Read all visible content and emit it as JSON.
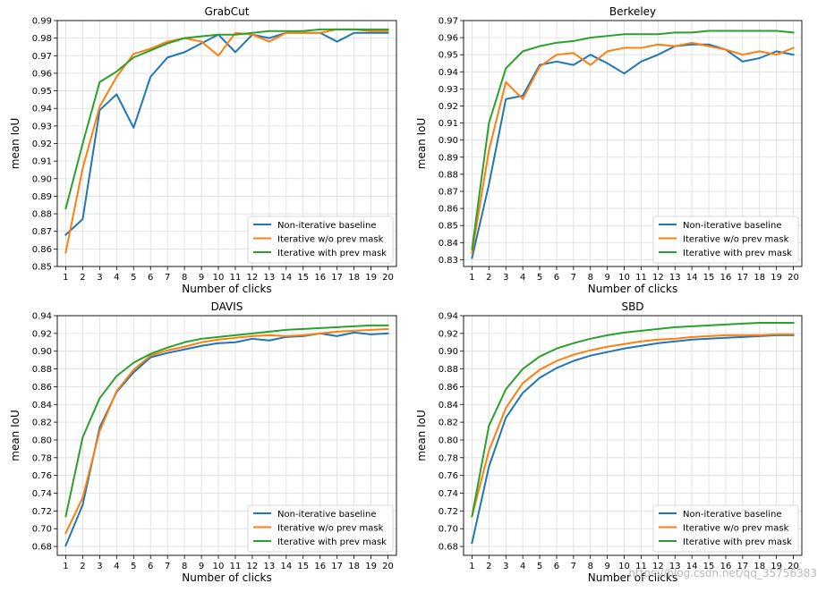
{
  "colors": {
    "Non-iterative baseline": "#1f77b4",
    "Iterative w/o prev mask": "#ff7f0e",
    "Iterative with prev mask": "#2ca02c",
    "grid": "#dcdcdc",
    "axes": "#000000"
  },
  "watermark": "https://blog.csdn.net/qq_35756383",
  "chart_data": [
    {
      "type": "line",
      "title": "GrabCut",
      "xlabel": "Number of clicks",
      "ylabel": "mean IoU",
      "x": [
        1,
        2,
        3,
        4,
        5,
        6,
        7,
        8,
        9,
        10,
        11,
        12,
        13,
        14,
        15,
        16,
        17,
        18,
        19,
        20
      ],
      "ylim": [
        0.85,
        0.99
      ],
      "yticks": [
        0.85,
        0.86,
        0.87,
        0.88,
        0.89,
        0.9,
        0.91,
        0.92,
        0.93,
        0.94,
        0.95,
        0.96,
        0.97,
        0.98,
        0.99
      ],
      "ytick_labels": [
        "0.85",
        "0.86",
        "0.87",
        "0.88",
        "0.89",
        "0.90",
        "0.91",
        "0.92",
        "0.93",
        "0.94",
        "0.95",
        "0.96",
        "0.97",
        "0.98",
        "0.99"
      ],
      "grid": true,
      "legend": "bottom-right",
      "series": [
        {
          "name": "Non-iterative baseline",
          "values": [
            0.868,
            0.877,
            0.939,
            0.948,
            0.929,
            0.958,
            0.969,
            0.972,
            0.977,
            0.982,
            0.972,
            0.982,
            0.98,
            0.983,
            0.983,
            0.983,
            0.978,
            0.983,
            0.983,
            0.983
          ]
        },
        {
          "name": "Iterative w/o prev mask",
          "values": [
            0.858,
            0.906,
            0.941,
            0.958,
            0.971,
            0.974,
            0.978,
            0.98,
            0.978,
            0.97,
            0.983,
            0.982,
            0.978,
            0.983,
            0.983,
            0.983,
            0.985,
            0.985,
            0.984,
            0.984
          ]
        },
        {
          "name": "Iterative with prev mask",
          "values": [
            0.883,
            0.92,
            0.955,
            0.961,
            0.969,
            0.973,
            0.977,
            0.98,
            0.981,
            0.982,
            0.982,
            0.983,
            0.984,
            0.984,
            0.984,
            0.985,
            0.985,
            0.985,
            0.985,
            0.985
          ]
        }
      ]
    },
    {
      "type": "line",
      "title": "Berkeley",
      "xlabel": "Number of clicks",
      "ylabel": "mean IoU",
      "x": [
        1,
        2,
        3,
        4,
        5,
        6,
        7,
        8,
        9,
        10,
        11,
        12,
        13,
        14,
        15,
        16,
        17,
        18,
        19,
        20
      ],
      "ylim": [
        0.826,
        0.97
      ],
      "yticks": [
        0.83,
        0.84,
        0.85,
        0.86,
        0.87,
        0.88,
        0.89,
        0.9,
        0.91,
        0.92,
        0.93,
        0.94,
        0.95,
        0.96,
        0.97
      ],
      "ytick_labels": [
        "0.83",
        "0.84",
        "0.85",
        "0.86",
        "0.87",
        "0.88",
        "0.89",
        "0.90",
        "0.91",
        "0.92",
        "0.93",
        "0.94",
        "0.95",
        "0.96",
        "0.97"
      ],
      "grid": true,
      "legend": "bottom-right",
      "series": [
        {
          "name": "Non-iterative baseline",
          "values": [
            0.831,
            0.874,
            0.924,
            0.926,
            0.944,
            0.946,
            0.944,
            0.95,
            0.945,
            0.939,
            0.946,
            0.95,
            0.955,
            0.956,
            0.956,
            0.953,
            0.946,
            0.948,
            0.952,
            0.95
          ]
        },
        {
          "name": "Iterative w/o prev mask",
          "values": [
            0.834,
            0.894,
            0.934,
            0.924,
            0.943,
            0.95,
            0.951,
            0.944,
            0.952,
            0.954,
            0.954,
            0.956,
            0.955,
            0.957,
            0.955,
            0.953,
            0.95,
            0.952,
            0.95,
            0.954
          ]
        },
        {
          "name": "Iterative with prev mask",
          "values": [
            0.836,
            0.91,
            0.942,
            0.952,
            0.955,
            0.957,
            0.958,
            0.96,
            0.961,
            0.962,
            0.962,
            0.962,
            0.963,
            0.963,
            0.964,
            0.964,
            0.964,
            0.964,
            0.964,
            0.963
          ]
        }
      ]
    },
    {
      "type": "line",
      "title": "DAVIS",
      "xlabel": "Number of clicks",
      "ylabel": "mean IoU",
      "x": [
        1,
        2,
        3,
        4,
        5,
        6,
        7,
        8,
        9,
        10,
        11,
        12,
        13,
        14,
        15,
        16,
        17,
        18,
        19,
        20
      ],
      "ylim": [
        0.67,
        0.94
      ],
      "yticks": [
        0.68,
        0.7,
        0.72,
        0.74,
        0.76,
        0.78,
        0.8,
        0.82,
        0.84,
        0.86,
        0.88,
        0.9,
        0.92,
        0.94
      ],
      "ytick_labels": [
        "0.68",
        "0.70",
        "0.72",
        "0.74",
        "0.76",
        "0.78",
        "0.80",
        "0.82",
        "0.84",
        "0.86",
        "0.88",
        "0.90",
        "0.92",
        "0.94"
      ],
      "grid": true,
      "legend": "bottom-right",
      "series": [
        {
          "name": "Non-iterative baseline",
          "values": [
            0.681,
            0.727,
            0.814,
            0.854,
            0.876,
            0.893,
            0.898,
            0.902,
            0.906,
            0.909,
            0.91,
            0.914,
            0.912,
            0.916,
            0.917,
            0.92,
            0.917,
            0.921,
            0.919,
            0.92
          ]
        },
        {
          "name": "Iterative w/o prev mask",
          "values": [
            0.695,
            0.735,
            0.81,
            0.855,
            0.879,
            0.895,
            0.901,
            0.905,
            0.91,
            0.913,
            0.915,
            0.917,
            0.918,
            0.917,
            0.918,
            0.92,
            0.922,
            0.923,
            0.924,
            0.925
          ]
        },
        {
          "name": "Iterative with prev mask",
          "values": [
            0.714,
            0.803,
            0.847,
            0.872,
            0.887,
            0.897,
            0.904,
            0.91,
            0.914,
            0.916,
            0.918,
            0.92,
            0.922,
            0.924,
            0.925,
            0.926,
            0.927,
            0.928,
            0.929,
            0.929
          ]
        }
      ]
    },
    {
      "type": "line",
      "title": "SBD",
      "xlabel": "Number of clicks",
      "ylabel": "mean IoU",
      "x": [
        1,
        2,
        3,
        4,
        5,
        6,
        7,
        8,
        9,
        10,
        11,
        12,
        13,
        14,
        15,
        16,
        17,
        18,
        19,
        20
      ],
      "ylim": [
        0.67,
        0.94
      ],
      "yticks": [
        0.68,
        0.7,
        0.72,
        0.74,
        0.76,
        0.78,
        0.8,
        0.82,
        0.84,
        0.86,
        0.88,
        0.9,
        0.92,
        0.94
      ],
      "ytick_labels": [
        "0.68",
        "0.70",
        "0.72",
        "0.74",
        "0.76",
        "0.78",
        "0.80",
        "0.82",
        "0.84",
        "0.86",
        "0.88",
        "0.90",
        "0.92",
        "0.94"
      ],
      "grid": true,
      "legend": "bottom-right",
      "series": [
        {
          "name": "Non-iterative baseline",
          "values": [
            0.684,
            0.77,
            0.825,
            0.853,
            0.87,
            0.881,
            0.889,
            0.895,
            0.899,
            0.903,
            0.906,
            0.909,
            0.911,
            0.913,
            0.914,
            0.915,
            0.916,
            0.917,
            0.918,
            0.918
          ]
        },
        {
          "name": "Iterative w/o prev mask",
          "values": [
            0.714,
            0.788,
            0.836,
            0.864,
            0.879,
            0.889,
            0.896,
            0.901,
            0.905,
            0.908,
            0.911,
            0.913,
            0.914,
            0.916,
            0.917,
            0.918,
            0.918,
            0.918,
            0.919,
            0.919
          ]
        },
        {
          "name": "Iterative with prev mask",
          "values": [
            0.714,
            0.816,
            0.857,
            0.88,
            0.894,
            0.903,
            0.909,
            0.914,
            0.918,
            0.921,
            0.923,
            0.925,
            0.927,
            0.928,
            0.929,
            0.93,
            0.931,
            0.932,
            0.932,
            0.932
          ]
        }
      ]
    }
  ]
}
